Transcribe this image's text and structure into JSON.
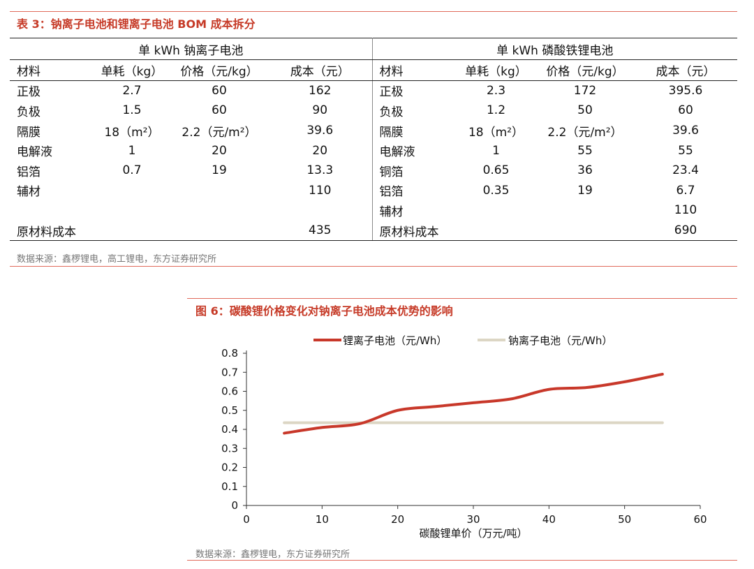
{
  "table3": {
    "title": "表 3：钠离子电池和锂离子电池 BOM 成本拆分",
    "group_left": "单 kWh 钠离子电池",
    "group_right": "单 kWh 磷酸铁锂电池",
    "headers": [
      "材料",
      "单耗（kg）",
      "价格（元/kg）",
      "成本（元）"
    ],
    "rows": [
      {
        "l": [
          "正极",
          "2.7",
          "60",
          "162"
        ],
        "r": [
          "正极",
          "2.3",
          "172",
          "395.6"
        ]
      },
      {
        "l": [
          "负极",
          "1.5",
          "60",
          "90"
        ],
        "r": [
          "负极",
          "1.2",
          "50",
          "60"
        ]
      },
      {
        "l": [
          "隔膜",
          "18（m²）",
          "2.2（元/m²）",
          "39.6"
        ],
        "r": [
          "隔膜",
          "18（m²）",
          "2.2（元/m²）",
          "39.6"
        ]
      },
      {
        "l": [
          "电解液",
          "1",
          "20",
          "20"
        ],
        "r": [
          "电解液",
          "1",
          "55",
          "55"
        ]
      },
      {
        "l": [
          "铝箔",
          "0.7",
          "19",
          "13.3"
        ],
        "r": [
          "铜箔",
          "0.65",
          "36",
          "23.4"
        ]
      },
      {
        "l": [
          "辅材",
          "",
          "",
          "110"
        ],
        "r": [
          "铝箔",
          "0.35",
          "19",
          "6.7"
        ]
      },
      {
        "l": [
          "",
          "",
          "",
          ""
        ],
        "r": [
          "辅材",
          "",
          "",
          "110"
        ]
      },
      {
        "l": [
          "原材料成本",
          "",
          "",
          "435"
        ],
        "r": [
          "原材料成本",
          "",
          "",
          "690"
        ]
      }
    ],
    "source": "数据来源：鑫椤锂电，高工锂电，东方证券研究所"
  },
  "figure6": {
    "title": "图 6：碳酸锂价格变化对钠离子电池成本优势的影响",
    "source": "数据来源：鑫椤锂电，东方证券研究所"
  },
  "chart_data": {
    "type": "line",
    "xlabel": "碳酸锂单价（万元/吨）",
    "ylabel": "",
    "xlim": [
      0,
      60
    ],
    "ylim": [
      0,
      0.8
    ],
    "xticks": [
      "0",
      "10",
      "20",
      "30",
      "40",
      "50",
      "60"
    ],
    "yticks": [
      "0",
      "0.1",
      "0.2",
      "0.3",
      "0.4",
      "0.5",
      "0.6",
      "0.7",
      "0.8"
    ],
    "legend_position": "top",
    "series": [
      {
        "name": "锂离子电池（元/Wh）",
        "color": "#c8382a",
        "x": [
          5,
          10,
          15,
          20,
          25,
          30,
          35,
          40,
          45,
          50,
          55
        ],
        "y": [
          0.38,
          0.41,
          0.43,
          0.5,
          0.52,
          0.54,
          0.56,
          0.61,
          0.62,
          0.65,
          0.69
        ]
      },
      {
        "name": "钠离子电池（元/Wh）",
        "color": "#dcd6c4",
        "x": [
          5,
          55
        ],
        "y": [
          0.435,
          0.435
        ]
      }
    ]
  }
}
